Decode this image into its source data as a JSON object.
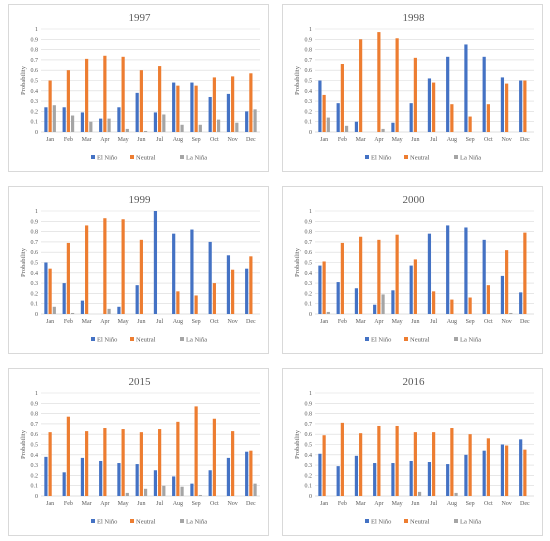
{
  "colors": {
    "El Niño": "#4472c4",
    "Neutral": "#ed7d31",
    "La Niña": "#a5a5a5",
    "grid": "#d9d9d9",
    "axis": "#bfbfbf"
  },
  "chart_data": [
    {
      "type": "bar",
      "title": "1997",
      "ylabel": "Probability",
      "ylim": [
        0,
        1
      ],
      "yticks": [
        "0",
        "0.1",
        "0.2",
        "0.3",
        "0.4",
        "0.5",
        "0.6",
        "0.7",
        "0.8",
        "0.9",
        "1"
      ],
      "categories": [
        "Jan",
        "Feb",
        "Mar",
        "Apr",
        "May",
        "Jun",
        "Jul",
        "Aug",
        "Sep",
        "Oct",
        "Nov",
        "Dec"
      ],
      "legend_position": "bottom",
      "series": [
        {
          "name": "El Niño",
          "values": [
            0.24,
            0.24,
            0.19,
            0.13,
            0.24,
            0.38,
            0.19,
            0.48,
            0.48,
            0.34,
            0.37,
            0.2
          ]
        },
        {
          "name": "Neutral",
          "values": [
            0.5,
            0.6,
            0.71,
            0.74,
            0.73,
            0.6,
            0.64,
            0.45,
            0.45,
            0.53,
            0.54,
            0.57
          ]
        },
        {
          "name": "La Niña",
          "values": [
            0.26,
            0.16,
            0.1,
            0.13,
            0.03,
            0.01,
            0.17,
            0.07,
            0.07,
            0.12,
            0.09,
            0.22
          ]
        }
      ]
    },
    {
      "type": "bar",
      "title": "1998",
      "ylabel": "Probability",
      "ylim": [
        0,
        1
      ],
      "yticks": [
        "0",
        "0.1",
        "0.2",
        "0.3",
        "0.4",
        "0.5",
        "0.6",
        "0.7",
        "0.8",
        "0.9",
        "1"
      ],
      "categories": [
        "Jan",
        "Feb",
        "Mar",
        "Apr",
        "May",
        "Jun",
        "Jul",
        "Aug",
        "Sep",
        "Oct",
        "Nov",
        "Dec"
      ],
      "legend_position": "bottom",
      "series": [
        {
          "name": "El Niño",
          "values": [
            0.5,
            0.28,
            0.1,
            0,
            0.09,
            0.28,
            0.52,
            0.73,
            0.85,
            0.73,
            0.53,
            0.5
          ]
        },
        {
          "name": "Neutral",
          "values": [
            0.36,
            0.66,
            0.9,
            0.97,
            0.91,
            0.72,
            0.48,
            0.27,
            0.15,
            0.27,
            0.47,
            0.5
          ]
        },
        {
          "name": "La Niña",
          "values": [
            0.14,
            0.06,
            0,
            0.03,
            0,
            0,
            0,
            0,
            0,
            0,
            0,
            0
          ]
        }
      ]
    },
    {
      "type": "bar",
      "title": "1999",
      "ylabel": "Probability",
      "ylim": [
        0,
        1
      ],
      "yticks": [
        "0",
        "0.1",
        "0.2",
        "0.3",
        "0.4",
        "0.5",
        "0.6",
        "0.7",
        "0.8",
        "0.9",
        "1"
      ],
      "categories": [
        "Jan",
        "Feb",
        "Mar",
        "Apr",
        "May",
        "Jun",
        "Jul",
        "Aug",
        "Sep",
        "Oct",
        "Nov",
        "Dec"
      ],
      "legend_position": "bottom",
      "series": [
        {
          "name": "El Niño",
          "values": [
            0.5,
            0.3,
            0.13,
            0,
            0.07,
            0.28,
            1.0,
            0.78,
            0.82,
            0.7,
            0.57,
            0.44
          ]
        },
        {
          "name": "Neutral",
          "values": [
            0.44,
            0.69,
            0.86,
            0.93,
            0.92,
            0.72,
            0,
            0.22,
            0.18,
            0.3,
            0.43,
            0.56
          ]
        },
        {
          "name": "La Niña",
          "values": [
            0.07,
            0.01,
            0,
            0.05,
            0,
            0,
            0,
            0,
            0,
            0,
            0,
            0
          ]
        }
      ]
    },
    {
      "type": "bar",
      "title": "2000",
      "ylabel": "Probability",
      "ylim": [
        0,
        1
      ],
      "yticks": [
        "0",
        "0.1",
        "0.2",
        "0.3",
        "0.4",
        "0.5",
        "0.6",
        "0.7",
        "0.8",
        "0.9",
        "1"
      ],
      "categories": [
        "Jan",
        "Feb",
        "Mar",
        "Apr",
        "May",
        "Jun",
        "Jul",
        "Aug",
        "Sep",
        "Oct",
        "Nov",
        "Dec"
      ],
      "legend_position": "bottom",
      "series": [
        {
          "name": "El Niño",
          "values": [
            0.47,
            0.31,
            0.25,
            0.09,
            0.23,
            0.47,
            0.78,
            0.86,
            0.84,
            0.72,
            0.37,
            0.21
          ]
        },
        {
          "name": "Neutral",
          "values": [
            0.51,
            0.69,
            0.75,
            0.72,
            0.77,
            0.53,
            0.22,
            0.14,
            0.16,
            0.28,
            0.62,
            0.79
          ]
        },
        {
          "name": "La Niña",
          "values": [
            0.02,
            0,
            0,
            0.19,
            0,
            0,
            0,
            0,
            0,
            0,
            0.01,
            0
          ]
        }
      ]
    },
    {
      "type": "bar",
      "title": "2015",
      "ylabel": "Probability",
      "ylim": [
        0,
        1
      ],
      "yticks": [
        "0",
        "0.1",
        "0.2",
        "0.3",
        "0.4",
        "0.5",
        "0.6",
        "0.7",
        "0.8",
        "0.9",
        "1"
      ],
      "categories": [
        "Jan",
        "Feb",
        "Mar",
        "Apr",
        "May",
        "Jun",
        "Jul",
        "Aug",
        "Sep",
        "Oct",
        "Nov",
        "Dec"
      ],
      "legend_position": "bottom",
      "series": [
        {
          "name": "El Niño",
          "values": [
            0.38,
            0.23,
            0.37,
            0.34,
            0.32,
            0.31,
            0.25,
            0.19,
            0.12,
            0.25,
            0.37,
            0.43
          ]
        },
        {
          "name": "Neutral",
          "values": [
            0.62,
            0.77,
            0.63,
            0.66,
            0.65,
            0.62,
            0.65,
            0.72,
            0.87,
            0.75,
            0.63,
            0.44
          ]
        },
        {
          "name": "La Niña",
          "values": [
            0,
            0,
            0,
            0,
            0.03,
            0.07,
            0.1,
            0.09,
            0.01,
            0,
            0,
            0.12
          ]
        }
      ]
    },
    {
      "type": "bar",
      "title": "2016",
      "ylabel": "Probability",
      "ylim": [
        0,
        1
      ],
      "yticks": [
        "0",
        "0.1",
        "0.2",
        "0.3",
        "0.4",
        "0.5",
        "0.6",
        "0.7",
        "0.8",
        "0.9",
        "1"
      ],
      "categories": [
        "Jan",
        "Feb",
        "Mar",
        "Apr",
        "May",
        "Jun",
        "Jul",
        "Aug",
        "Sep",
        "Oct",
        "Nov",
        "Dec"
      ],
      "legend_position": "bottom",
      "series": [
        {
          "name": "El Niño",
          "values": [
            0.41,
            0.29,
            0.39,
            0.32,
            0.32,
            0.34,
            0.33,
            0.31,
            0.4,
            0.44,
            0.5,
            0.55
          ]
        },
        {
          "name": "Neutral",
          "values": [
            0.59,
            0.71,
            0.61,
            0.68,
            0.68,
            0.62,
            0.62,
            0.66,
            0.6,
            0.56,
            0.49,
            0.45
          ]
        },
        {
          "name": "La Niña",
          "values": [
            0,
            0,
            0,
            0,
            0,
            0.04,
            0,
            0.03,
            0,
            0,
            0,
            0
          ]
        }
      ]
    }
  ]
}
